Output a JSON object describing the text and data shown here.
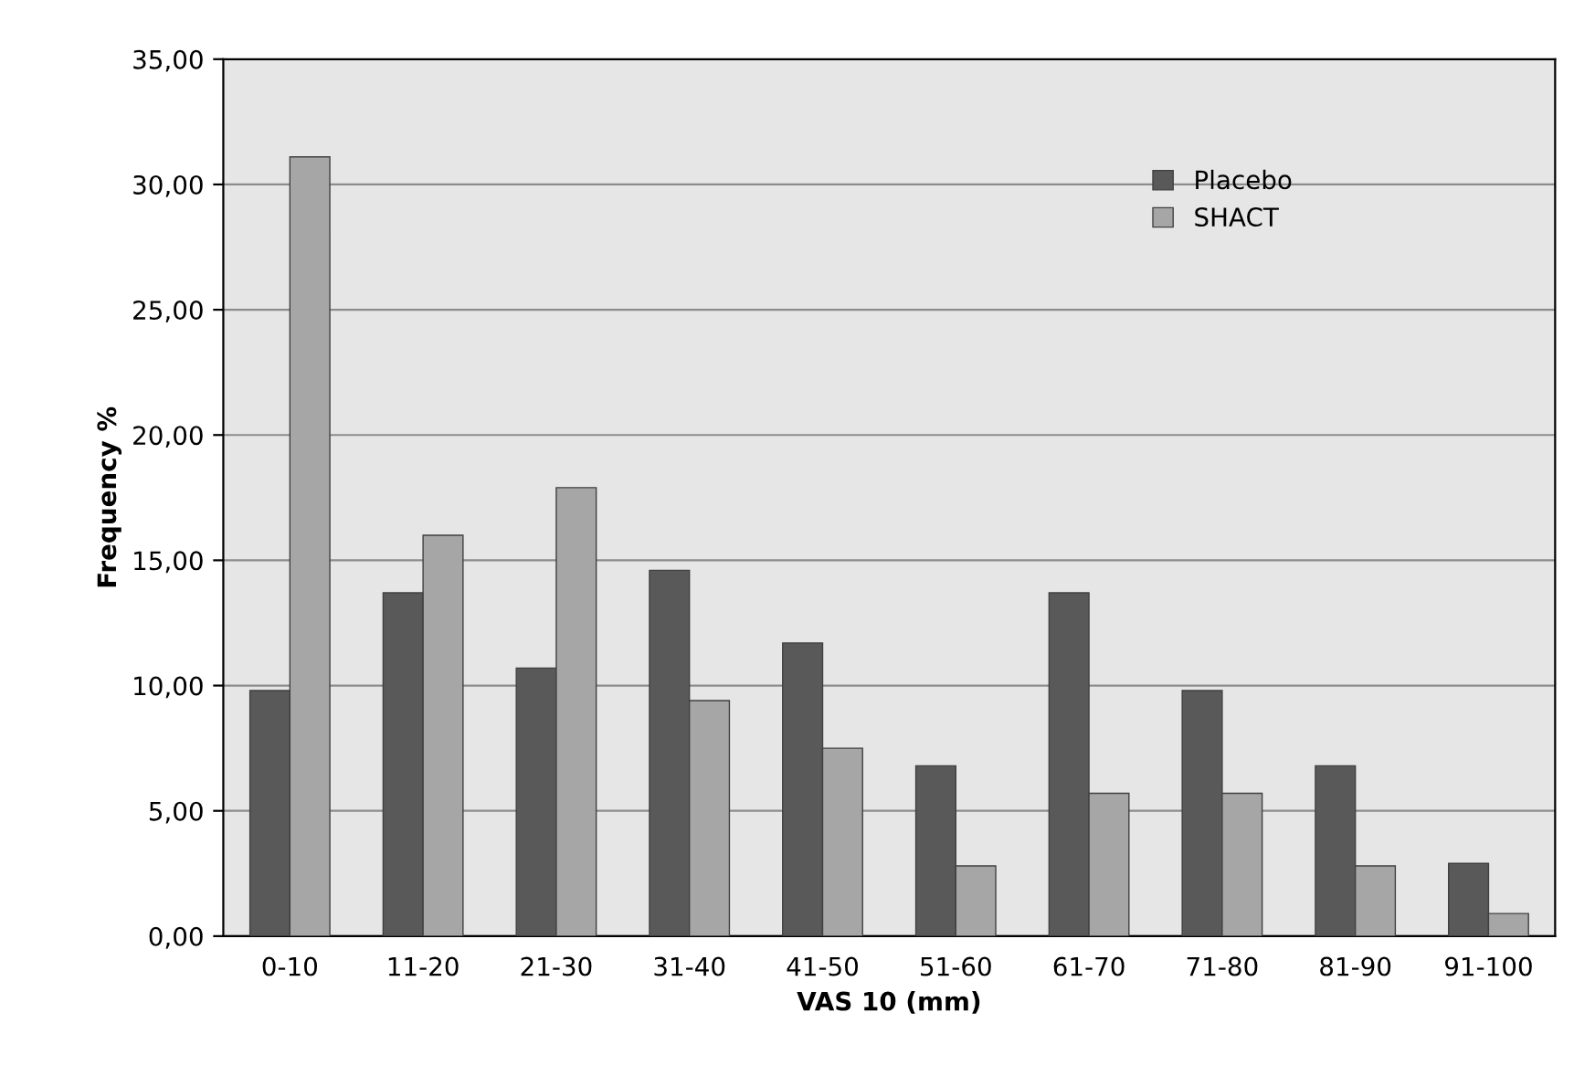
{
  "chart_data": {
    "type": "bar",
    "xlabel": "VAS 10 (mm)",
    "ylabel": "Frequency %",
    "categories": [
      "0-10",
      "11-20",
      "21-30",
      "31-40",
      "41-50",
      "51-60",
      "61-70",
      "71-80",
      "81-90",
      "91-100"
    ],
    "series": [
      {
        "name": "Placebo",
        "color": "#595959",
        "values": [
          9.8,
          13.7,
          10.7,
          14.6,
          11.7,
          6.8,
          13.7,
          9.8,
          6.8,
          2.9
        ]
      },
      {
        "name": "SHACT",
        "color": "#a6a6a6",
        "values": [
          31.1,
          16.0,
          17.9,
          9.4,
          7.5,
          2.8,
          5.7,
          5.7,
          2.8,
          0.9
        ]
      }
    ],
    "ylim": [
      0,
      35
    ],
    "yticks": [
      {
        "value": 0,
        "label": "0,00"
      },
      {
        "value": 5,
        "label": "5,00"
      },
      {
        "value": 10,
        "label": "10,00"
      },
      {
        "value": 15,
        "label": "15,00"
      },
      {
        "value": 20,
        "label": "20,00"
      },
      {
        "value": 25,
        "label": "25,00"
      },
      {
        "value": 30,
        "label": "30,00"
      },
      {
        "value": 35,
        "label": "35,00"
      }
    ],
    "grid": "y",
    "legend": "top right"
  }
}
